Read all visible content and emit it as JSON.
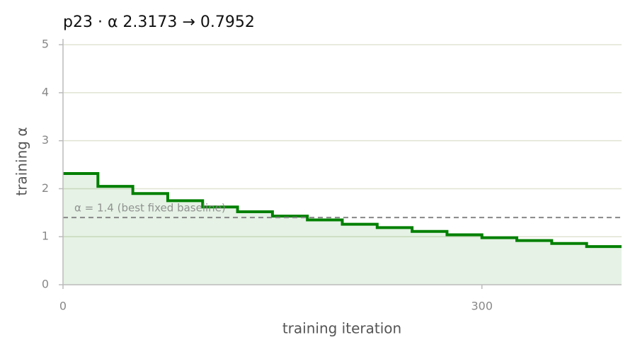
{
  "chart_data": {
    "type": "step",
    "title": "p23   ·   α 2.3173 → 0.7952",
    "xlabel": "training iteration",
    "ylabel": "training α",
    "x": [
      0,
      25,
      50,
      75,
      100,
      125,
      150,
      175,
      200,
      225,
      250,
      275,
      300,
      325,
      350,
      375
    ],
    "series": [
      {
        "name": "training α",
        "color": "#008000",
        "values": [
          2.3173,
          2.05,
          1.9,
          1.75,
          1.62,
          1.52,
          1.43,
          1.35,
          1.26,
          1.19,
          1.11,
          1.04,
          0.98,
          0.92,
          0.86,
          0.7952
        ]
      }
    ],
    "baseline": 1.4,
    "annotation": "α = 1.4 (best fixed baseline)",
    "xlim": [
      0,
      400
    ],
    "ylim": [
      0,
      5.12
    ],
    "xticks": [
      0,
      300
    ],
    "yticks": [
      0,
      1,
      2,
      3,
      4,
      5
    ],
    "grid": true
  }
}
